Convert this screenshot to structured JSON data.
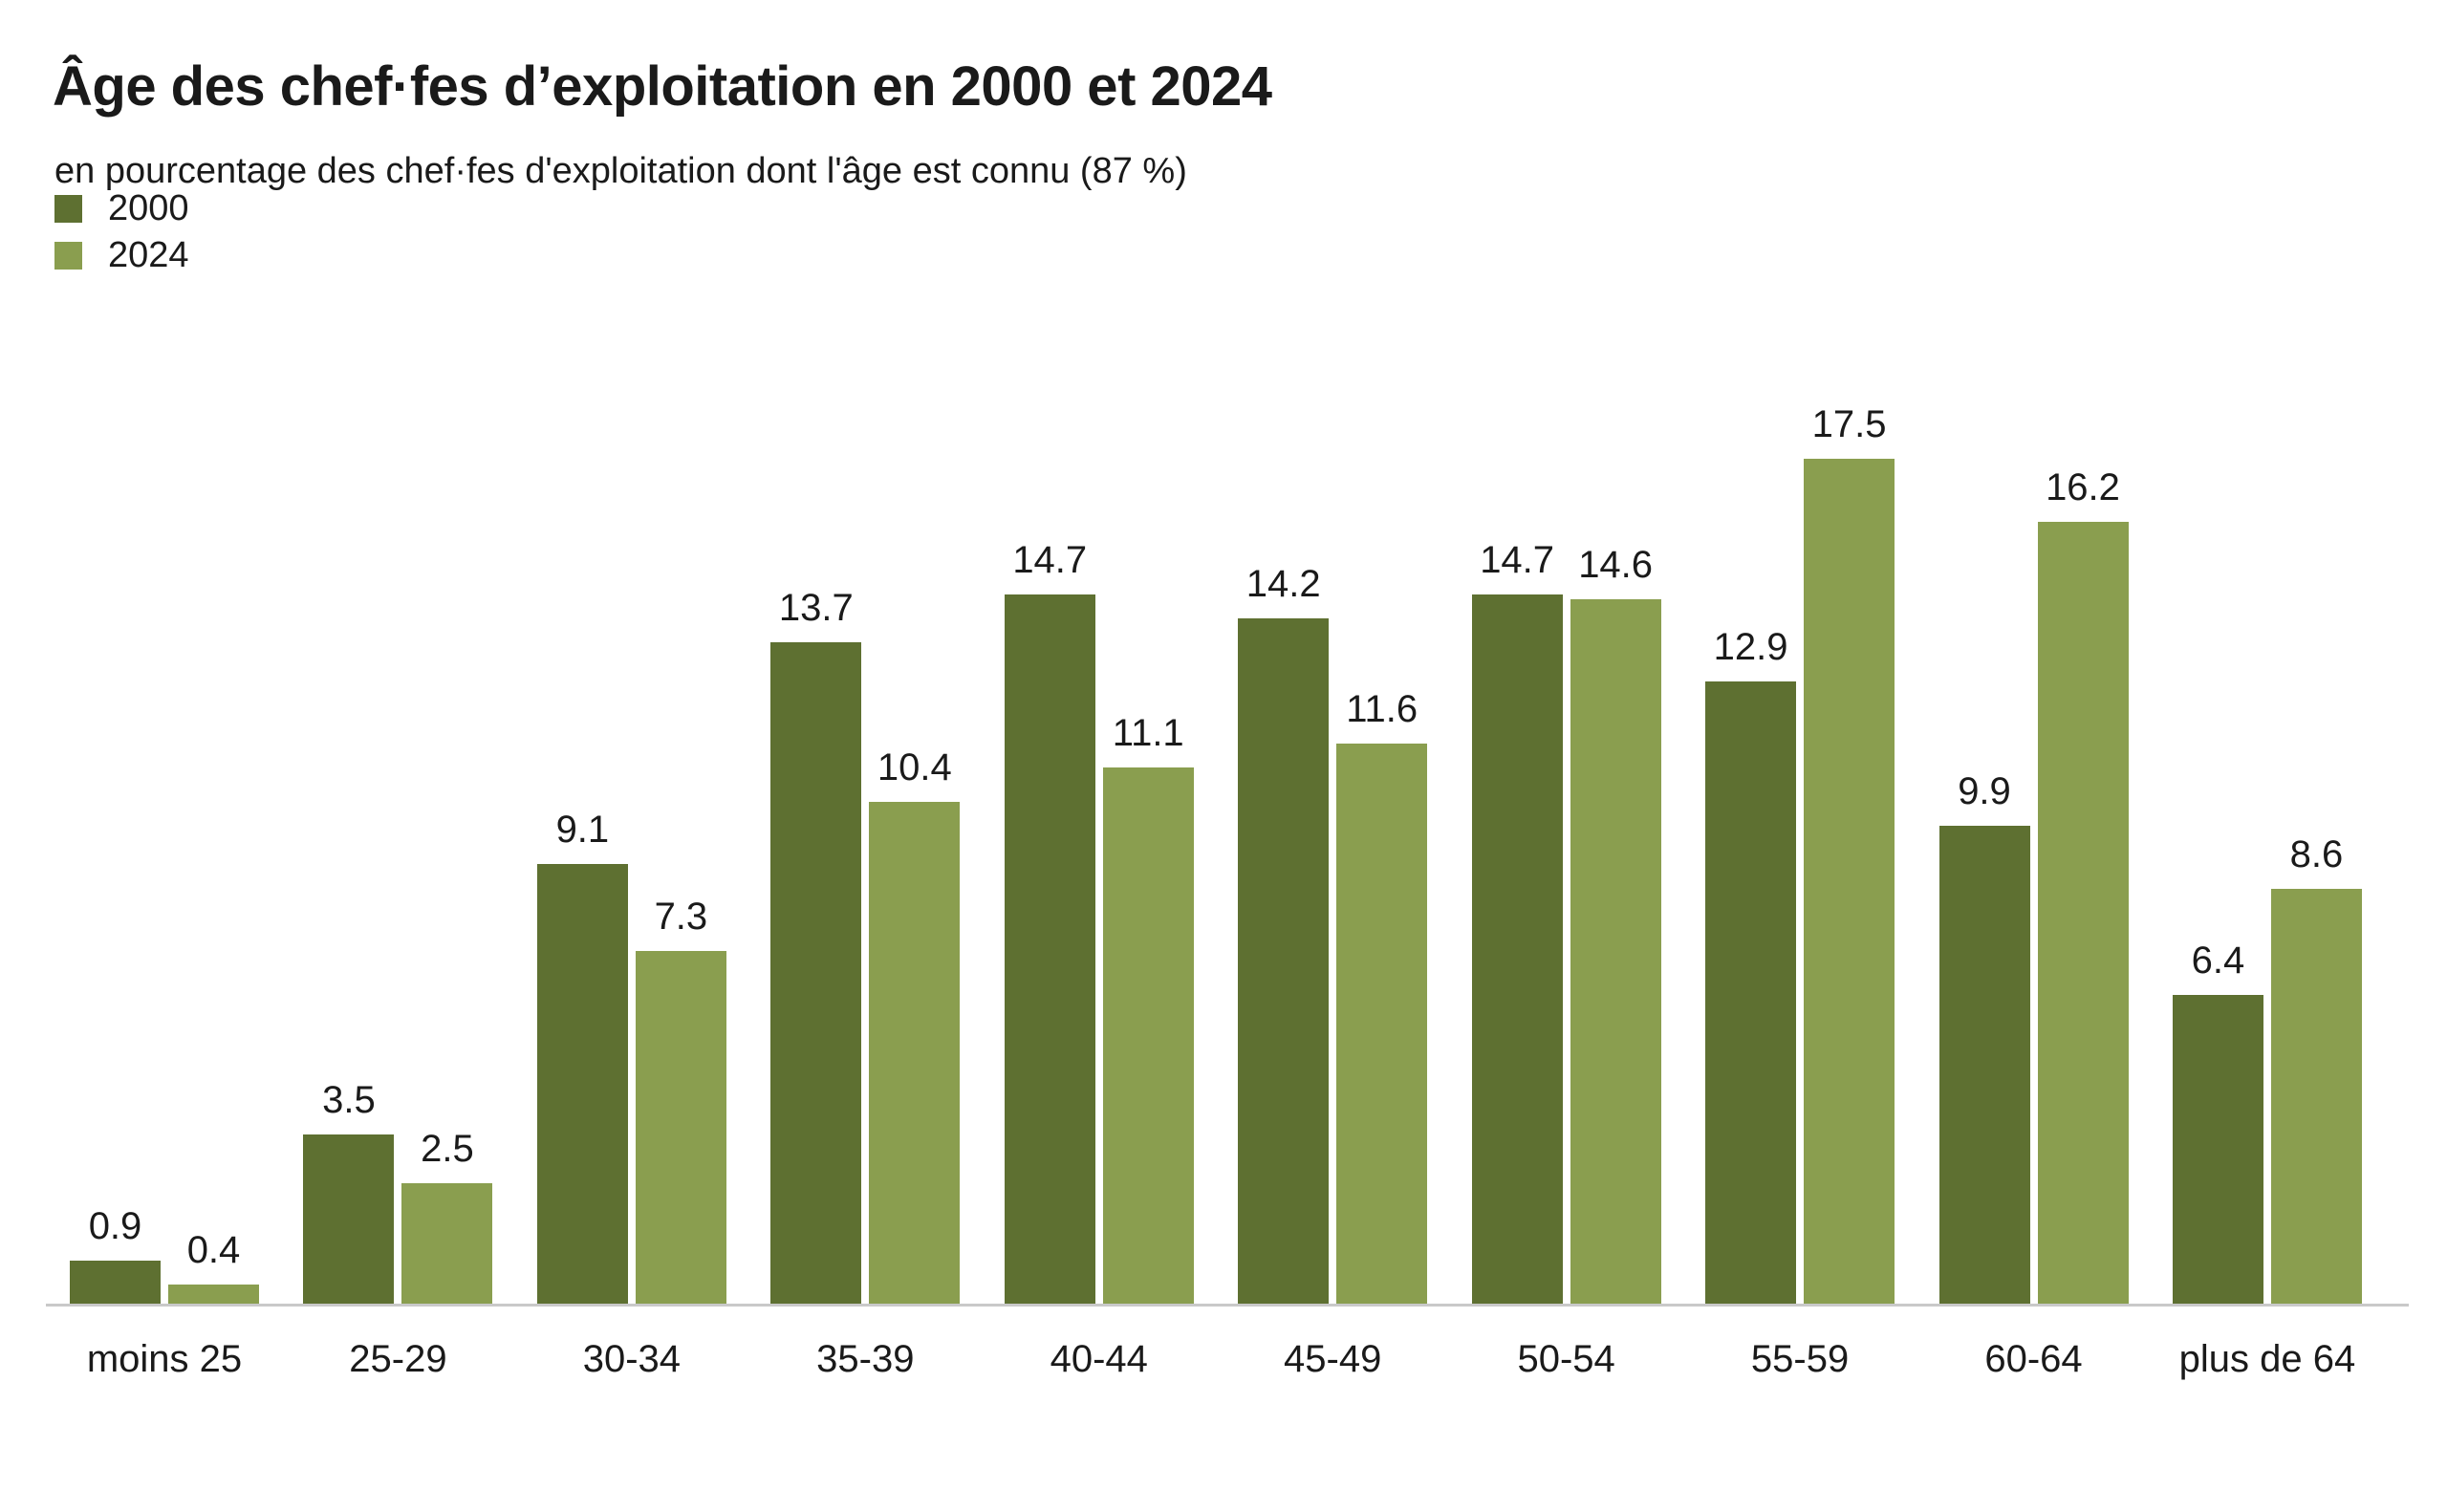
{
  "chart_data": {
    "type": "bar",
    "title": "Âge des chef·fes d’exploitation en 2000 et 2024",
    "subtitle": "en pourcentage des chef·fes d'exploitation dont l'âge est connu (87 %)",
    "categories": [
      "moins 25",
      "25-29",
      "30-34",
      "35-39",
      "40-44",
      "45-49",
      "50-54",
      "55-59",
      "60-64",
      "plus de 64"
    ],
    "series": [
      {
        "name": "2000",
        "color": "#5e7031",
        "values": [
          0.9,
          3.5,
          9.1,
          13.7,
          14.7,
          14.2,
          14.7,
          12.9,
          9.9,
          6.4
        ]
      },
      {
        "name": "2024",
        "color": "#8a9e4f",
        "values": [
          0.4,
          2.5,
          7.3,
          10.4,
          11.1,
          11.6,
          14.6,
          17.5,
          16.2,
          8.6
        ]
      }
    ],
    "ylim": [
      0,
      18
    ],
    "xlabel": "",
    "ylabel": "",
    "grid": false,
    "legend_position": "top-left",
    "value_labels": true,
    "value_label_format": "one-decimal-dot",
    "axis_line_color": "#c9c9c9",
    "background_color": "#ffffff",
    "text_color": "#1a1a1a"
  }
}
